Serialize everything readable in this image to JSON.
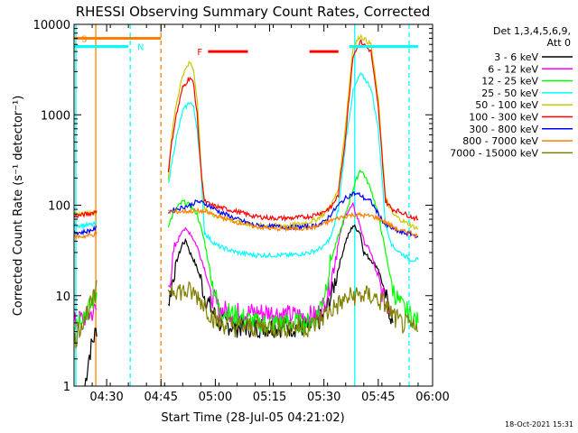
{
  "chart_data": {
    "type": "line",
    "title": "RHESSI Observing Summary Count Rates, Corrected",
    "xlabel": "Start Time (28-Jul-05 04:21:02)",
    "ylabel": "Corrected Count Rate (s⁻¹ detector⁻¹)",
    "yscale": "log",
    "ylim": [
      1,
      10000
    ],
    "xlim_minutes": [
      0,
      95
    ],
    "x_ticks": [
      {
        "label": "04:30",
        "minute": 9
      },
      {
        "label": "04:45",
        "minute": 24
      },
      {
        "label": "05:00",
        "minute": 39
      },
      {
        "label": "05:15",
        "minute": 54
      },
      {
        "label": "05:30",
        "minute": 69
      },
      {
        "label": "05:45",
        "minute": 84
      },
      {
        "label": "06:00",
        "minute": 99
      }
    ],
    "y_ticks": [
      {
        "label": "1",
        "value": 1
      },
      {
        "label": "10",
        "value": 10
      },
      {
        "label": "100",
        "value": 100
      },
      {
        "label": "1000",
        "value": 1000
      },
      {
        "label": "10000",
        "value": 10000
      }
    ],
    "legend_header": [
      "Det 1,3,4,5,6,9,",
      "Att 0"
    ],
    "legend_position": "right",
    "flag_labels": [
      {
        "label": "S",
        "color": "#ff8000",
        "x0": 0,
        "x1": 24,
        "y": 7000
      },
      {
        "label": "N",
        "color": "#00ffff",
        "x0": 0,
        "x1": 15,
        "y": 5700
      },
      {
        "label": "F",
        "color": "#ff0000",
        "x0": 37,
        "x1": 48,
        "y": 5000
      },
      {
        "label": "",
        "color": "#ff0000",
        "x0": 65,
        "x1": 73,
        "y": 5000
      },
      {
        "label": "",
        "color": "#00ffff",
        "x0": 76,
        "x1": 95,
        "y": 5700
      }
    ],
    "vertical_markers": [
      {
        "x": 6,
        "color": "#ff8000",
        "style": "solid"
      },
      {
        "x": 15.5,
        "color": "#00ffff",
        "style": "dashed"
      },
      {
        "x": 24,
        "color": "#ff8000",
        "style": "dashed"
      },
      {
        "x": 77.5,
        "color": "#00ffff",
        "style": "solid"
      },
      {
        "x": 92.5,
        "color": "#00ffff",
        "style": "dashed"
      },
      {
        "x": 0.5,
        "color": "#00ffff",
        "style": "solid"
      }
    ],
    "series": [
      {
        "name": "3 - 6 keV",
        "color": "#000000",
        "x": [
          3,
          4,
          5,
          6,
          6.5,
          26,
          28,
          30,
          31,
          32,
          33,
          34,
          35,
          36,
          38,
          40,
          45,
          50,
          55,
          60,
          65,
          67,
          69,
          71,
          73,
          75,
          77,
          79,
          80,
          82,
          84,
          86,
          88
        ],
        "y": [
          1,
          2,
          3,
          4,
          5,
          8,
          22,
          38,
          40,
          30,
          25,
          20,
          15,
          10,
          7,
          5,
          4.5,
          4.5,
          4.5,
          4.5,
          4.5,
          5,
          6,
          10,
          20,
          40,
          60,
          50,
          30,
          25,
          20,
          10,
          5
        ]
      },
      {
        "name": "6 - 12 keV",
        "color": "#ff00ff",
        "x": [
          0,
          2,
          4,
          6,
          6.5,
          26,
          28,
          30,
          32,
          34,
          36,
          38,
          40,
          45,
          50,
          55,
          60,
          65,
          67,
          69,
          71,
          73,
          75,
          77,
          79,
          80,
          82,
          84,
          86,
          88
        ],
        "y": [
          5,
          5.5,
          6,
          7,
          7,
          12,
          35,
          55,
          50,
          35,
          20,
          10,
          7,
          6.5,
          6.5,
          6.5,
          6,
          6,
          6,
          8,
          15,
          40,
          80,
          100,
          60,
          40,
          30,
          15,
          8,
          7
        ]
      },
      {
        "name": "12 - 25 keV",
        "color": "#00ff00",
        "x": [
          0,
          2,
          4,
          6,
          6.5,
          26,
          28,
          30,
          32,
          34,
          36,
          38,
          40,
          45,
          50,
          55,
          60,
          65,
          67,
          69,
          71,
          73,
          75,
          77,
          79,
          80,
          82,
          84,
          86,
          88,
          90,
          93,
          95
        ],
        "y": [
          5,
          6,
          7,
          10,
          12,
          60,
          90,
          110,
          100,
          80,
          40,
          15,
          7,
          6,
          5,
          5,
          5,
          5,
          6,
          10,
          25,
          45,
          80,
          150,
          250,
          220,
          150,
          80,
          30,
          12,
          8,
          6,
          5
        ]
      },
      {
        "name": "25 - 50 keV",
        "color": "#00ffff",
        "x": [
          0,
          2,
          4,
          6,
          6.5,
          26,
          27,
          28,
          30,
          32,
          33,
          34,
          35,
          36,
          38,
          40,
          45,
          50,
          55,
          60,
          65,
          67,
          69,
          71,
          73,
          75,
          77,
          79,
          80,
          82,
          84,
          86,
          88,
          90,
          93,
          95
        ],
        "y": [
          60,
          60,
          60,
          62,
          65,
          170,
          300,
          500,
          1100,
          1400,
          1200,
          700,
          250,
          50,
          40,
          35,
          30,
          28,
          28,
          28,
          30,
          32,
          35,
          45,
          90,
          500,
          1800,
          2800,
          2600,
          2000,
          700,
          60,
          35,
          30,
          25,
          25
        ]
      },
      {
        "name": "50 - 100 keV",
        "color": "#c8c800",
        "x": [
          0,
          2,
          4,
          6,
          6.5,
          26,
          27,
          28,
          30,
          32,
          33,
          34,
          35,
          36,
          38,
          40,
          45,
          50,
          55,
          60,
          65,
          67,
          69,
          71,
          73,
          75,
          77,
          79,
          80,
          82,
          84,
          86,
          88,
          90,
          93,
          95
        ],
        "y": [
          80,
          80,
          82,
          85,
          88,
          190,
          600,
          1200,
          2800,
          3800,
          3200,
          1500,
          300,
          90,
          80,
          75,
          65,
          60,
          60,
          60,
          65,
          70,
          80,
          100,
          150,
          800,
          5500,
          7500,
          7000,
          6000,
          1500,
          120,
          80,
          70,
          60,
          55
        ]
      },
      {
        "name": "100 - 300 keV",
        "color": "#ff0000",
        "x": [
          0,
          2,
          4,
          6,
          6.5,
          26,
          27,
          28,
          30,
          32,
          33,
          34,
          35,
          36,
          38,
          40,
          45,
          50,
          55,
          60,
          65,
          67,
          69,
          71,
          73,
          75,
          77,
          79,
          80,
          82,
          84,
          86,
          88,
          90,
          93,
          95
        ],
        "y": [
          75,
          78,
          80,
          85,
          90,
          240,
          500,
          900,
          2000,
          2600,
          2200,
          1000,
          250,
          110,
          100,
          95,
          85,
          75,
          72,
          72,
          75,
          80,
          85,
          95,
          130,
          600,
          4500,
          6500,
          6000,
          5000,
          1200,
          110,
          90,
          85,
          75,
          70
        ]
      },
      {
        "name": "300 - 800 keV",
        "color": "#0000ff",
        "x": [
          0,
          2,
          4,
          6,
          6.5,
          26,
          28,
          30,
          32,
          34,
          36,
          38,
          40,
          45,
          50,
          55,
          60,
          65,
          67,
          69,
          71,
          73,
          75,
          77,
          79,
          80,
          82,
          84,
          86,
          88,
          90,
          93,
          95
        ],
        "y": [
          50,
          50,
          52,
          55,
          58,
          85,
          90,
          95,
          100,
          110,
          105,
          95,
          85,
          70,
          60,
          58,
          57,
          58,
          60,
          65,
          80,
          100,
          120,
          135,
          130,
          120,
          110,
          80,
          60,
          55,
          50,
          48,
          45
        ]
      },
      {
        "name": "800 - 7000 keV",
        "color": "#ff8000",
        "x": [
          0,
          2,
          4,
          6,
          6.5,
          26,
          28,
          30,
          32,
          34,
          36,
          38,
          40,
          45,
          50,
          55,
          60,
          65,
          67,
          69,
          71,
          73,
          75,
          77,
          79,
          80,
          82,
          84,
          86,
          88,
          90,
          93,
          95
        ],
        "y": [
          45,
          45,
          46,
          48,
          50,
          85,
          85,
          85,
          86,
          86,
          85,
          80,
          75,
          65,
          58,
          55,
          55,
          56,
          58,
          62,
          68,
          72,
          76,
          78,
          78,
          77,
          76,
          72,
          65,
          58,
          52,
          50,
          45
        ]
      },
      {
        "name": "7000 - 15000 keV",
        "color": "#808000",
        "x": [
          0,
          2,
          4,
          6,
          6.5,
          26,
          28,
          30,
          32,
          34,
          36,
          38,
          40,
          45,
          50,
          55,
          60,
          65,
          67,
          69,
          71,
          73,
          75,
          77,
          79,
          80,
          82,
          84,
          86,
          88,
          90,
          93,
          95
        ],
        "y": [
          3,
          5,
          7,
          10,
          13,
          12,
          12,
          11,
          11,
          10,
          8,
          6,
          5,
          4.5,
          4.5,
          4.5,
          4.5,
          4.5,
          5,
          6,
          7,
          8,
          9,
          10,
          10,
          10,
          10,
          9,
          8,
          6,
          5,
          4.5,
          4
        ]
      }
    ]
  },
  "footer": {
    "timestamp": "18-Oct-2021 15:31"
  }
}
